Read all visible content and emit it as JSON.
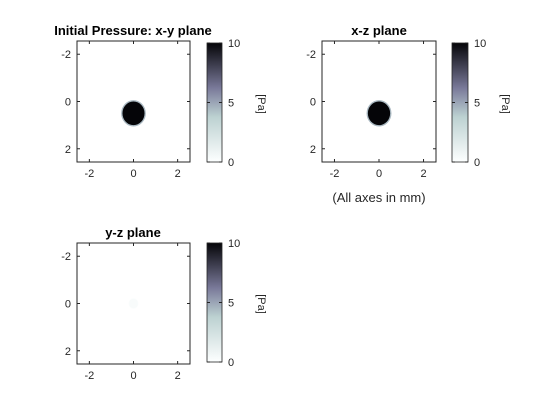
{
  "note": "(All axes in mm)",
  "chart_data": [
    {
      "type": "heatmap",
      "title": "Initial Pressure: x-y plane",
      "xlim": [
        -2.56,
        2.56
      ],
      "ylim": [
        -2.56,
        2.56
      ],
      "y_reversed": true,
      "xticks": [
        "-2",
        "0",
        "2"
      ],
      "yticks": [
        "-2",
        "0",
        "2"
      ],
      "disc": {
        "center_x": 0,
        "center_y": 0.5,
        "radius": 0.5,
        "value": 10
      },
      "colorbar": {
        "label": "[Pa]",
        "ticks": [
          "0",
          "5",
          "10"
        ],
        "range": [
          0,
          10
        ],
        "colormap": "bone-reversed"
      }
    },
    {
      "type": "heatmap",
      "title": "x-z plane",
      "xlim": [
        -2.56,
        2.56
      ],
      "ylim": [
        -2.56,
        2.56
      ],
      "y_reversed": true,
      "xticks": [
        "-2",
        "0",
        "2"
      ],
      "yticks": [
        "-2",
        "0",
        "2"
      ],
      "disc": {
        "center_x": 0,
        "center_y": 0.5,
        "radius": 0.5,
        "value": 10
      },
      "colorbar": {
        "label": "[Pa]",
        "ticks": [
          "0",
          "5",
          "10"
        ],
        "range": [
          0,
          10
        ],
        "colormap": "bone-reversed"
      }
    },
    {
      "type": "heatmap",
      "title": "y-z plane",
      "xlim": [
        -2.56,
        2.56
      ],
      "ylim": [
        -2.56,
        2.56
      ],
      "y_reversed": true,
      "xticks": [
        "-2",
        "0",
        "2"
      ],
      "yticks": [
        "-2",
        "0",
        "2"
      ],
      "disc": {
        "center_x": 0,
        "center_y": 0,
        "radius": 0.2,
        "value": 0.3
      },
      "colorbar": {
        "label": "[Pa]",
        "ticks": [
          "0",
          "5",
          "10"
        ],
        "range": [
          0,
          10
        ],
        "colormap": "bone-reversed"
      }
    }
  ]
}
